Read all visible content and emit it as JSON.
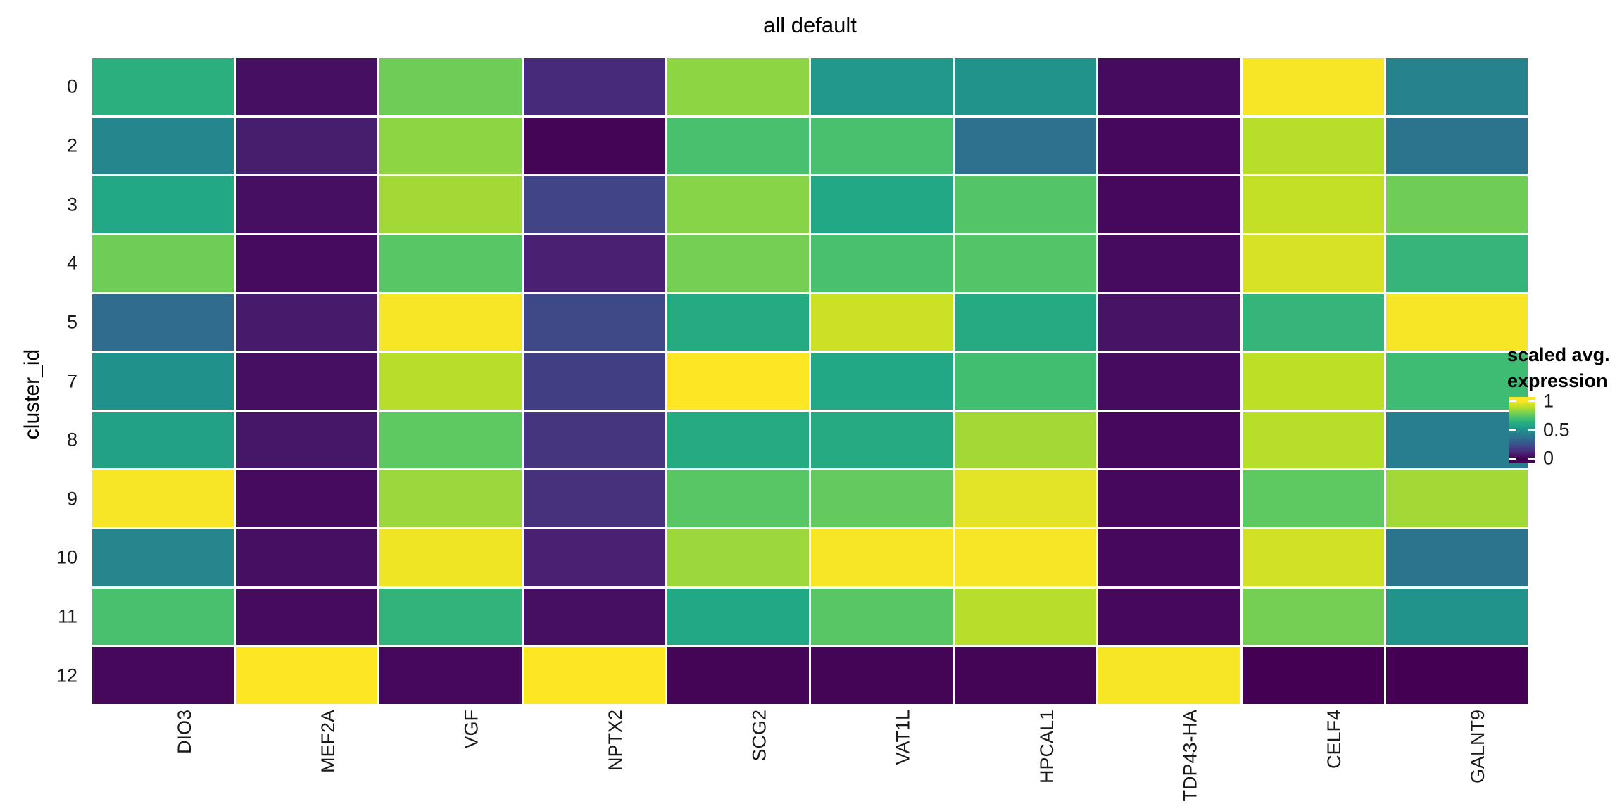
{
  "title": "all default",
  "y_axis": {
    "title": "cluster_id"
  },
  "legend": {
    "title_lines": [
      "scaled avg.",
      "expression"
    ],
    "ticks": [
      {
        "label": "1",
        "value": 1.0
      },
      {
        "label": "0.5",
        "value": 0.5
      },
      {
        "label": "0",
        "value": 0.0
      }
    ]
  },
  "chart_data": {
    "type": "heatmap",
    "title": "all default",
    "xlabel": "",
    "ylabel": "cluster_id",
    "columns": [
      "DIO3",
      "MEF2A",
      "VGF",
      "NPTX2",
      "SCG2",
      "VAT1L",
      "HPCAL1",
      "TDP43-HA",
      "CELF4",
      "GALNT9"
    ],
    "rows": [
      "0",
      "2",
      "3",
      "4",
      "5",
      "7",
      "8",
      "9",
      "10",
      "11",
      "12"
    ],
    "values": [
      [
        0.63,
        0.04,
        0.78,
        0.12,
        0.83,
        0.53,
        0.51,
        0.03,
        0.99,
        0.44
      ],
      [
        0.46,
        0.08,
        0.83,
        0.01,
        0.71,
        0.71,
        0.37,
        0.02,
        0.89,
        0.38
      ],
      [
        0.6,
        0.04,
        0.86,
        0.2,
        0.82,
        0.6,
        0.73,
        0.02,
        0.91,
        0.78
      ],
      [
        0.78,
        0.03,
        0.74,
        0.09,
        0.79,
        0.71,
        0.73,
        0.03,
        0.94,
        0.66
      ],
      [
        0.35,
        0.07,
        0.99,
        0.22,
        0.61,
        0.92,
        0.61,
        0.05,
        0.66,
        0.99
      ],
      [
        0.5,
        0.04,
        0.89,
        0.18,
        1.0,
        0.6,
        0.7,
        0.03,
        0.9,
        0.69
      ],
      [
        0.57,
        0.06,
        0.75,
        0.15,
        0.61,
        0.61,
        0.86,
        0.02,
        0.89,
        0.42
      ],
      [
        0.99,
        0.03,
        0.85,
        0.14,
        0.74,
        0.76,
        0.96,
        0.02,
        0.75,
        0.86
      ],
      [
        0.45,
        0.04,
        0.98,
        0.09,
        0.85,
        0.99,
        0.99,
        0.02,
        0.93,
        0.38
      ],
      [
        0.71,
        0.03,
        0.65,
        0.04,
        0.6,
        0.74,
        0.89,
        0.02,
        0.79,
        0.51
      ],
      [
        0.02,
        1.0,
        0.02,
        1.0,
        0.01,
        0.01,
        0.01,
        0.99,
        0.0,
        0.0
      ]
    ],
    "colormap": "viridis",
    "value_range": [
      0,
      1
    ],
    "legend_title": "scaled avg. expression",
    "legend_ticks": [
      1,
      0.5,
      0
    ],
    "grid": false,
    "legend_position": "right",
    "x_labels_rotated_90": true
  },
  "colors": {
    "background": "#ffffff",
    "text": "#000000",
    "axis_text": "#1a1a1a",
    "cell_gap": "#ffffff",
    "viridis_anchors": [
      "#440154",
      "#482475",
      "#414487",
      "#355f8d",
      "#2a788e",
      "#21918c",
      "#22a884",
      "#42be71",
      "#7ad151",
      "#bddf26",
      "#fde725"
    ]
  }
}
